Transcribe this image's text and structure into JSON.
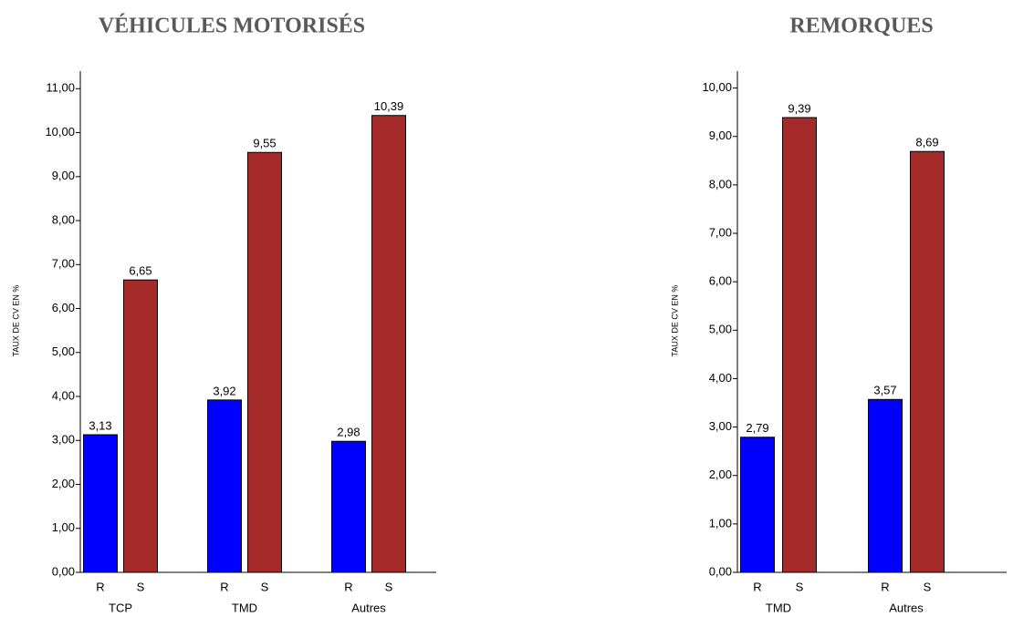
{
  "chart_data": [
    {
      "type": "bar",
      "title": "VÉHICULES MOTORISÉS",
      "y_label": "TAUX DE CV EN %",
      "categories": [
        "TCP",
        "TMD",
        "Autres"
      ],
      "series": [
        {
          "name": "R",
          "color": "#0000ff",
          "values": [
            3.13,
            3.92,
            2.98
          ],
          "value_labels": [
            "3,13",
            "3,92",
            "2,98"
          ]
        },
        {
          "name": "S",
          "color": "#a52a2a",
          "values": [
            6.65,
            9.55,
            10.39
          ],
          "value_labels": [
            "6,65",
            "9,55",
            "10,39"
          ]
        }
      ],
      "ylim": [
        0,
        11.4
      ],
      "yticks": [
        {
          "value": 0,
          "label": "0,00"
        },
        {
          "value": 1,
          "label": "1,00"
        },
        {
          "value": 2,
          "label": "2,00"
        },
        {
          "value": 3,
          "label": "3,00"
        },
        {
          "value": 4,
          "label": "4,00"
        },
        {
          "value": 5,
          "label": "5,00"
        },
        {
          "value": 6,
          "label": "6,00"
        },
        {
          "value": 7,
          "label": "7,00"
        },
        {
          "value": 8,
          "label": "8,00"
        },
        {
          "value": 9,
          "label": "9,00"
        },
        {
          "value": 10,
          "label": "10,00"
        },
        {
          "value": 11,
          "label": "11,00"
        }
      ]
    },
    {
      "type": "bar",
      "title": "REMORQUES",
      "y_label": "TAUX DE CV EN %",
      "categories": [
        "TMD",
        "Autres"
      ],
      "series": [
        {
          "name": "R",
          "color": "#0000ff",
          "values": [
            2.79,
            3.57
          ],
          "value_labels": [
            "2,79",
            "3,57"
          ]
        },
        {
          "name": "S",
          "color": "#a52a2a",
          "values": [
            9.39,
            8.69
          ],
          "value_labels": [
            "9,39",
            "8,69"
          ]
        }
      ],
      "ylim": [
        0,
        10.35
      ],
      "yticks": [
        {
          "value": 0,
          "label": "0,00"
        },
        {
          "value": 1,
          "label": "1,00"
        },
        {
          "value": 2,
          "label": "2,00"
        },
        {
          "value": 3,
          "label": "3,00"
        },
        {
          "value": 4,
          "label": "4,00"
        },
        {
          "value": 5,
          "label": "5,00"
        },
        {
          "value": 6,
          "label": "6,00"
        },
        {
          "value": 7,
          "label": "7,00"
        },
        {
          "value": 8,
          "label": "8,00"
        },
        {
          "value": 9,
          "label": "9,00"
        },
        {
          "value": 10,
          "label": "10,00"
        }
      ]
    }
  ]
}
